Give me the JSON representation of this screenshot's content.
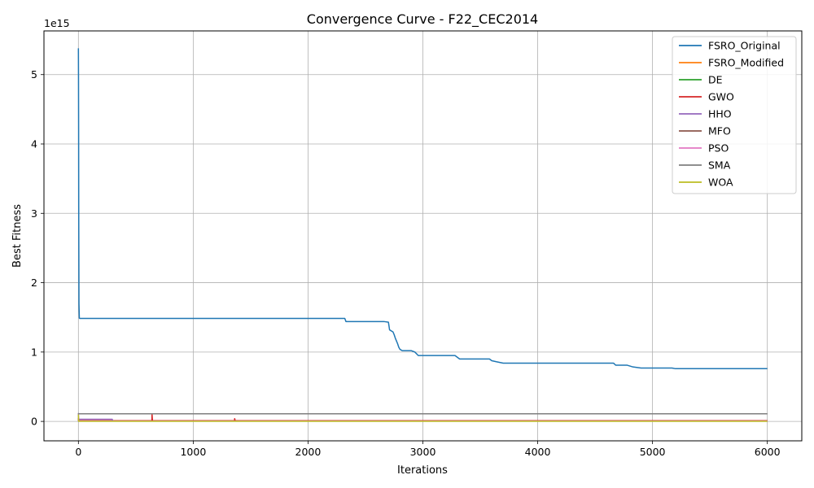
{
  "chart_data": {
    "type": "line",
    "title": "Convergence Curve - F22_CEC2014",
    "xlabel": "Iterations",
    "ylabel": "Best Fitness",
    "y_offset_label": "1e15",
    "y_scale_factor": 1000000000000000.0,
    "xlim": [
      -300,
      6300
    ],
    "ylim": [
      -0.28,
      5.63
    ],
    "xticks": [
      0,
      1000,
      2000,
      3000,
      4000,
      5000,
      6000
    ],
    "yticks": [
      0,
      1,
      2,
      3,
      4,
      5
    ],
    "grid": true,
    "legend_position": "upper-right",
    "series": [
      {
        "name": "FSRO_Original",
        "color": "#1f77b4",
        "x": [
          0,
          1,
          2,
          3,
          5,
          8,
          12,
          2320,
          2330,
          2660,
          2700,
          2710,
          2740,
          2750,
          2760,
          2770,
          2780,
          2790,
          2800,
          2820,
          2900,
          2930,
          2960,
          3280,
          3320,
          3580,
          3600,
          3640,
          3700,
          4660,
          4680,
          4780,
          4830,
          4900,
          5170,
          5200,
          6000
        ],
        "y": [
          5.38,
          4.95,
          4.2,
          3.0,
          1.7,
          1.49,
          1.485,
          1.485,
          1.44,
          1.44,
          1.43,
          1.32,
          1.29,
          1.25,
          1.2,
          1.16,
          1.12,
          1.07,
          1.04,
          1.02,
          1.02,
          1.0,
          0.95,
          0.95,
          0.9,
          0.9,
          0.875,
          0.86,
          0.84,
          0.84,
          0.81,
          0.81,
          0.785,
          0.77,
          0.77,
          0.76,
          0.76
        ]
      },
      {
        "name": "FSRO_Modified",
        "color": "#ff7f0e",
        "x": [
          0,
          2,
          6000
        ],
        "y": [
          0.03,
          0.005,
          0.005
        ]
      },
      {
        "name": "DE",
        "color": "#2ca02c",
        "x": [
          0,
          2,
          6000
        ],
        "y": [
          0.04,
          0.006,
          0.006
        ]
      },
      {
        "name": "GWO",
        "color": "#d62728",
        "x": [
          0,
          2,
          640,
          641,
          645,
          1360,
          1361,
          1365,
          6000
        ],
        "y": [
          0.05,
          0.01,
          0.01,
          0.11,
          0.01,
          0.01,
          0.04,
          0.01,
          0.01
        ]
      },
      {
        "name": "HHO",
        "color": "#9467bd",
        "x": [
          0,
          2,
          295,
          300,
          6000
        ],
        "y": [
          0.12,
          0.03,
          0.03,
          0.005,
          0.005
        ]
      },
      {
        "name": "MFO",
        "color": "#8c564b",
        "x": [
          0,
          2,
          6000
        ],
        "y": [
          0.02,
          0.004,
          0.004
        ]
      },
      {
        "name": "PSO",
        "color": "#e377c2",
        "x": [
          0,
          2,
          6000
        ],
        "y": [
          0.02,
          0.004,
          0.004
        ]
      },
      {
        "name": "SMA",
        "color": "#7f7f7f",
        "x": [
          0,
          2,
          6000
        ],
        "y": [
          0.12,
          0.11,
          0.11
        ]
      },
      {
        "name": "WOA",
        "color": "#bcbd22",
        "x": [
          0,
          2,
          6000
        ],
        "y": [
          0.1,
          0.002,
          0.002
        ]
      }
    ]
  }
}
